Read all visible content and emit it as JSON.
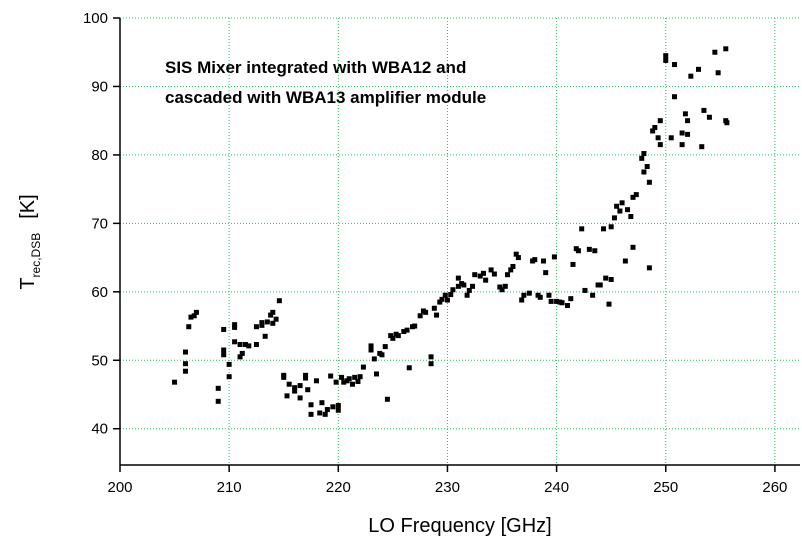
{
  "chart_data": {
    "type": "scatter",
    "annotation": [
      "SIS Mixer integrated with WBA12 and",
      "cascaded with WBA13 amplifier module"
    ],
    "xlabel": "LO Frequency [GHz]",
    "ylabel": "T",
    "ylabel_sub": "rec,DSB",
    "ylabel_unit": "[K]",
    "xlim": [
      200,
      262.3
    ],
    "ylim": [
      34.7,
      100
    ],
    "xticks": [
      200,
      210,
      220,
      230,
      240,
      250,
      260
    ],
    "yticks": [
      40,
      50,
      60,
      70,
      80,
      90,
      100
    ],
    "grid": true,
    "color": "#000000",
    "x": [
      205.0,
      206.0,
      206.0,
      206.0,
      206.3,
      206.5,
      206.8,
      207.0,
      209.0,
      209.0,
      209.5,
      209.5,
      209.5,
      210.0,
      210.0,
      210.5,
      210.5,
      210.5,
      211.0,
      211.0,
      211.2,
      211.5,
      211.8,
      212.5,
      212.5,
      213.0,
      213.0,
      213.3,
      213.5,
      213.8,
      214.0,
      214.0,
      214.3,
      214.6,
      215.0,
      215.0,
      215.3,
      215.5,
      216.0,
      216.0,
      216.5,
      216.5,
      217.0,
      217.0,
      217.2,
      217.5,
      217.5,
      218.0,
      218.3,
      218.5,
      218.8,
      219.0,
      219.3,
      219.5,
      219.8,
      220.0,
      220.0,
      220.3,
      220.5,
      220.8,
      221.0,
      221.3,
      221.5,
      221.8,
      222.0,
      222.3,
      223.0,
      223.0,
      223.3,
      223.5,
      223.8,
      224.0,
      224.3,
      224.5,
      224.8,
      225.0,
      225.3,
      225.5,
      226.0,
      226.3,
      226.5,
      226.8,
      227.0,
      227.5,
      227.8,
      228.0,
      228.5,
      228.5,
      228.8,
      229.0,
      229.3,
      229.5,
      229.8,
      230.0,
      230.3,
      230.5,
      231.0,
      231.0,
      231.3,
      231.5,
      231.8,
      232.0,
      232.3,
      232.5,
      233.0,
      233.3,
      233.5,
      234.0,
      234.3,
      234.8,
      235.0,
      235.3,
      235.5,
      235.8,
      236.0,
      236.3,
      236.5,
      236.8,
      237.0,
      237.5,
      237.8,
      238.0,
      238.3,
      238.5,
      238.8,
      239.0,
      239.3,
      239.5,
      239.8,
      240.0,
      240.3,
      240.5,
      241.0,
      241.3,
      241.5,
      241.8,
      242.0,
      242.3,
      242.6,
      243.0,
      243.3,
      243.5,
      243.8,
      244.0,
      244.3,
      244.5,
      244.8,
      245.0,
      245.0,
      245.3,
      245.5,
      245.8,
      246.0,
      246.3,
      246.5,
      246.8,
      247.0,
      247.0,
      247.3,
      247.8,
      248.0,
      248.0,
      248.3,
      248.5,
      248.5,
      248.8,
      249.0,
      249.3,
      249.5,
      249.5,
      250.0,
      250.0,
      250.5,
      250.8,
      250.8,
      251.5,
      251.5,
      251.8,
      252.0,
      252.0,
      252.3,
      253.0,
      253.3,
      253.5,
      254.0,
      254.5,
      254.8,
      255.5,
      255.5,
      255.6
    ],
    "values": [
      46.8,
      48.4,
      49.5,
      51.2,
      54.9,
      56.3,
      56.5,
      57.0,
      44.0,
      45.9,
      50.8,
      51.5,
      54.5,
      47.6,
      49.4,
      52.7,
      54.8,
      55.2,
      50.5,
      52.3,
      51.0,
      52.3,
      52.1,
      52.3,
      54.9,
      55.1,
      55.5,
      53.5,
      55.6,
      56.6,
      57.0,
      55.4,
      56.0,
      58.7,
      47.5,
      47.8,
      44.8,
      46.5,
      46.0,
      45.5,
      44.5,
      46.3,
      47.4,
      47.8,
      45.7,
      42.1,
      43.5,
      47.0,
      42.3,
      43.8,
      42.1,
      42.8,
      47.7,
      43.2,
      46.8,
      42.7,
      43.4,
      47.5,
      46.8,
      47.0,
      47.3,
      46.5,
      47.5,
      46.9,
      47.6,
      49.0,
      52.1,
      51.5,
      50.2,
      48.0,
      51.0,
      50.8,
      52.0,
      44.3,
      53.6,
      53.2,
      53.8,
      53.6,
      54.2,
      54.4,
      48.9,
      54.9,
      55.0,
      56.5,
      57.2,
      57.0,
      50.5,
      49.5,
      57.6,
      56.6,
      58.5,
      58.9,
      59.5,
      58.8,
      59.6,
      60.3,
      62.0,
      60.8,
      61.2,
      61.0,
      59.5,
      60.2,
      60.8,
      62.5,
      62.3,
      62.7,
      61.7,
      63.2,
      62.6,
      60.7,
      60.3,
      60.8,
      62.5,
      63.2,
      63.7,
      65.5,
      65.0,
      58.8,
      59.5,
      59.8,
      64.5,
      64.7,
      59.5,
      59.2,
      64.5,
      62.8,
      59.5,
      58.6,
      65.1,
      58.6,
      58.5,
      58.4,
      58.0,
      59.0,
      64.0,
      66.3,
      66.0,
      69.2,
      60.2,
      66.2,
      59.5,
      66.0,
      61.0,
      61.0,
      69.2,
      62.0,
      58.2,
      61.8,
      69.5,
      70.8,
      72.5,
      71.8,
      73.0,
      64.5,
      72.0,
      71.0,
      73.8,
      66.5,
      74.2,
      79.5,
      80.2,
      77.5,
      78.3,
      76.0,
      63.5,
      83.5,
      84.0,
      82.5,
      85.0,
      81.5,
      94.5,
      93.8,
      82.5,
      93.2,
      88.5,
      83.2,
      81.5,
      86.0,
      85.0,
      83.0,
      91.5,
      92.5,
      81.2,
      86.5,
      85.5,
      95.0,
      92.0,
      95.5,
      85.0,
      84.7
    ]
  }
}
